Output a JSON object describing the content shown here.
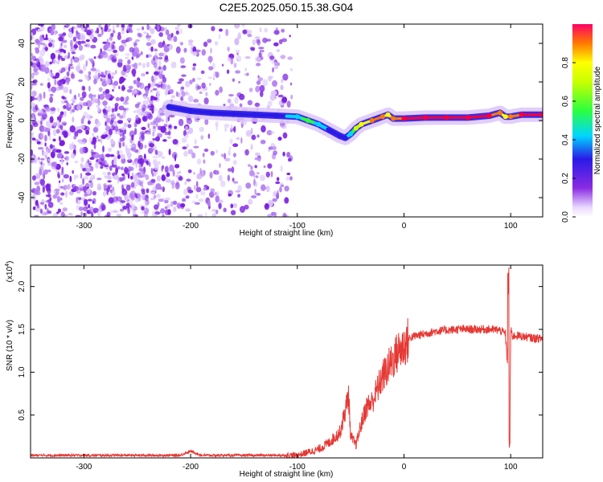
{
  "title": "C2E5.2025.050.15.38.G04",
  "colors": {
    "snr_line": "#e53935",
    "spectrogram_ridge_high": "#ff0000",
    "spectrogram_background_noise": "#8a2be2",
    "axis": "#000000"
  },
  "colorbar": {
    "label": "Normalized spectral amplitude",
    "colormap": "hsv-like: violet(0) → blue → cyan → green → yellow → red(1)",
    "ticks": [
      "0.0",
      "0.2",
      "0.4",
      "0.6",
      "0.8"
    ],
    "tick_values": [
      0.0,
      0.2,
      0.4,
      0.6,
      0.8
    ],
    "range": [
      0,
      1
    ]
  },
  "chart_data": [
    {
      "type": "heatmap",
      "name": "spectrogram",
      "xlabel": "Height of straight line (km)",
      "ylabel": "Frequency (Hz)",
      "xlim": [
        -350,
        130
      ],
      "ylim": [
        -50,
        50
      ],
      "xticks": [
        -300,
        -200,
        -100,
        0,
        100
      ],
      "xtick_labels": [
        "-300",
        "-200",
        "-100",
        "0",
        "100"
      ],
      "yticks": [
        -40,
        -20,
        0,
        20,
        40
      ],
      "ytick_labels": [
        "-40",
        "-20",
        "0",
        "20",
        "40"
      ],
      "noise_region_km": [
        -350,
        -105
      ],
      "ridge": {
        "x": [
          -220,
          -200,
          -180,
          -160,
          -140,
          -120,
          -100,
          -90,
          -80,
          -70,
          -60,
          -55,
          -50,
          -45,
          -40,
          -30,
          -20,
          -15,
          -10,
          0,
          20,
          40,
          60,
          80,
          90,
          95,
          100,
          110,
          130
        ],
        "y": [
          7,
          5,
          4,
          3.5,
          3,
          2.5,
          2,
          0,
          -2,
          -5,
          -8,
          -9,
          -7,
          -4,
          -2,
          0,
          2,
          3,
          1,
          1,
          1.5,
          1.5,
          1.5,
          2.5,
          4,
          2,
          2,
          3,
          3
        ],
        "amplitude": [
          0.4,
          0.35,
          0.4,
          0.35,
          0.4,
          0.35,
          0.5,
          0.6,
          0.5,
          0.4,
          0.4,
          0.35,
          0.5,
          0.7,
          0.85,
          0.9,
          0.9,
          0.85,
          0.95,
          1.0,
          1.0,
          1.0,
          1.0,
          1.0,
          0.95,
          0.8,
          0.95,
          1.0,
          1.0
        ]
      },
      "grid": false
    },
    {
      "type": "line",
      "name": "snr",
      "xlabel": "Height of straight line (km)",
      "ylabel": "SNR (10 * v/v)",
      "multiplier_label_base": "(x10",
      "multiplier_label_exp": "4",
      "multiplier_label_close": ")",
      "xlim": [
        -350,
        130
      ],
      "ylim": [
        0,
        22500
      ],
      "xticks": [
        -300,
        -200,
        -100,
        0,
        100
      ],
      "xtick_labels": [
        "-300",
        "-200",
        "-100",
        "0",
        "100"
      ],
      "yticks": [
        5000,
        10000,
        15000,
        20000
      ],
      "ytick_labels": [
        "0.5",
        "1.0",
        "1.5",
        "2.0"
      ],
      "series": [
        {
          "x": [
            -350,
            -300,
            -250,
            -210,
            -200,
            -190,
            -150,
            -120,
            -100,
            -80,
            -70,
            -60,
            -55,
            -52,
            -50,
            -45,
            -40,
            -35,
            -30,
            -25,
            -20,
            -15,
            -10,
            -5,
            0,
            5,
            10,
            20,
            30,
            40,
            50,
            60,
            70,
            80,
            90,
            95,
            97,
            98,
            99,
            100,
            101,
            102,
            105,
            110,
            120,
            130
          ],
          "y": [
            300,
            300,
            300,
            300,
            800,
            300,
            300,
            300,
            300,
            1000,
            1800,
            3000,
            5500,
            7500,
            2500,
            1500,
            4000,
            6000,
            6500,
            8000,
            9500,
            10500,
            11500,
            12500,
            13000,
            14000,
            14200,
            14500,
            14800,
            14900,
            15000,
            15000,
            15000,
            15000,
            14900,
            14500,
            11000,
            22500,
            500,
            15000,
            14500,
            14200,
            14300,
            14200,
            14000,
            13900
          ]
        }
      ],
      "grid": false
    }
  ]
}
